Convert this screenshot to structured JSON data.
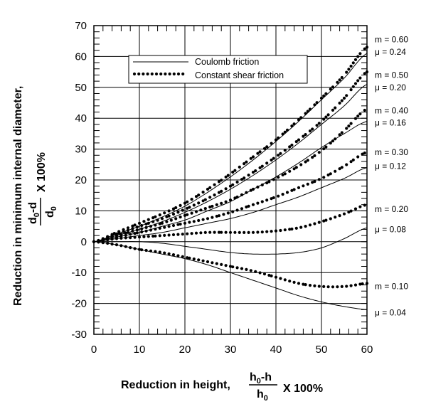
{
  "chart_data": {
    "type": "line",
    "title": "",
    "xlabel": {
      "prefix": "Reduction in height,",
      "numerator": {
        "base": "h",
        "sub": "0",
        "rest": "-h"
      },
      "denominator": {
        "base": "h",
        "sub": "0"
      },
      "suffix": "X 100%"
    },
    "ylabel": {
      "text": "Reduction in minimum internal diameter,",
      "numerator": {
        "base": "d",
        "sub": "0",
        "rest": "-d"
      },
      "denominator": {
        "base": "d",
        "sub": "0"
      },
      "suffix": "X 100%"
    },
    "xlim": [
      0,
      60
    ],
    "ylim": [
      -30,
      70
    ],
    "xticks": [
      0,
      10,
      20,
      30,
      40,
      50,
      60
    ],
    "yticks": [
      -30,
      -20,
      -10,
      0,
      10,
      20,
      30,
      40,
      50,
      60,
      70
    ],
    "grid": true,
    "legend": {
      "position": "upper-left",
      "entries": [
        {
          "label": "Coulomb friction",
          "style": "solid"
        },
        {
          "label": "Constant shear friction",
          "style": "dotted"
        }
      ]
    },
    "x": [
      0,
      5,
      10,
      15,
      20,
      25,
      30,
      35,
      40,
      45,
      50,
      55,
      60
    ],
    "series": [
      {
        "style": "solid",
        "label": "μ = 0.24",
        "values": [
          0,
          2.5,
          5,
          8,
          11.5,
          16,
          21,
          26.5,
          32.5,
          39,
          46,
          53,
          61
        ]
      },
      {
        "style": "solid",
        "label": "μ = 0.20",
        "values": [
          0,
          2,
          4,
          6.5,
          9.5,
          13,
          17,
          21.5,
          26.5,
          32,
          38,
          44,
          51
        ]
      },
      {
        "style": "solid",
        "label": "μ = 0.16",
        "values": [
          0,
          1.5,
          3,
          5,
          7,
          10,
          13,
          17,
          21,
          25.5,
          30.5,
          35,
          39
        ]
      },
      {
        "style": "solid",
        "label": "μ = 0.12",
        "values": [
          0,
          1,
          2,
          3,
          4.5,
          6,
          7.5,
          9.5,
          12,
          14.5,
          17.5,
          20.5,
          24
        ]
      },
      {
        "style": "solid",
        "label": "μ = 0.08",
        "values": [
          0,
          0,
          0,
          -0.5,
          -1.5,
          -2.5,
          -3.5,
          -4,
          -4,
          -3.5,
          -2,
          1,
          4.5
        ]
      },
      {
        "style": "solid",
        "label": "μ = 0.04",
        "values": [
          0,
          -1,
          -2.5,
          -4,
          -5.5,
          -7.5,
          -10,
          -12.5,
          -15,
          -17.5,
          -19.5,
          -21,
          -22
        ]
      },
      {
        "style": "dotted",
        "label": "m = 0.60",
        "values": [
          0,
          3,
          6,
          9,
          12.5,
          17,
          22,
          27.5,
          33,
          39.5,
          46.5,
          54,
          63
        ]
      },
      {
        "style": "dotted",
        "label": "m = 0.50",
        "values": [
          0,
          2.5,
          5,
          7.5,
          10.5,
          14,
          18,
          22.5,
          27.5,
          33,
          39,
          46.5,
          55
        ]
      },
      {
        "style": "dotted",
        "label": "m = 0.40",
        "values": [
          0,
          2,
          4,
          6,
          8.5,
          11,
          13.5,
          17,
          20.5,
          24.5,
          29.5,
          36,
          43
        ]
      },
      {
        "style": "dotted",
        "label": "m = 0.30",
        "values": [
          0,
          1.5,
          3,
          4.5,
          6,
          7.5,
          9.5,
          12,
          14.5,
          17.5,
          20.5,
          24.5,
          29
        ]
      },
      {
        "style": "dotted",
        "label": "m = 0.20",
        "values": [
          0,
          1,
          1.5,
          2,
          2.5,
          3,
          3,
          3,
          3.5,
          4.5,
          6.5,
          9,
          12
        ]
      },
      {
        "style": "dotted",
        "label": "m = 0.10",
        "values": [
          0,
          -1,
          -2.5,
          -3.5,
          -5,
          -6.5,
          -8,
          -9.5,
          -11.5,
          -13.5,
          -14.5,
          -14.5,
          -13.5
        ]
      }
    ],
    "right_labels": [
      {
        "text": "m = 0.60",
        "y": 65.5
      },
      {
        "text": "μ = 0.24",
        "y": 61.5
      },
      {
        "text": "m = 0.50",
        "y": 54
      },
      {
        "text": "μ = 0.20",
        "y": 50
      },
      {
        "text": "m = 0.40",
        "y": 42.5
      },
      {
        "text": "μ = 0.16",
        "y": 38.5
      },
      {
        "text": "m = 0.30",
        "y": 29
      },
      {
        "text": "μ = 0.12",
        "y": 24.5
      },
      {
        "text": "m = 0.20",
        "y": 10.5
      },
      {
        "text": "μ = 0.08",
        "y": 4
      },
      {
        "text": "m = 0.10",
        "y": -14.5
      },
      {
        "text": "μ = 0.04",
        "y": -23
      }
    ]
  }
}
